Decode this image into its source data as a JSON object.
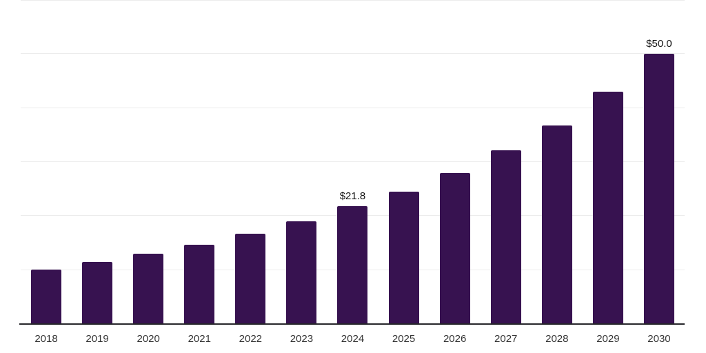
{
  "chart": {
    "background": "#ffffff",
    "bar_color": "#371250",
    "gridline_color": "#ececec",
    "axis_line_color": "#26262a",
    "data_label_color": "#111111",
    "tick_label_color": "#333333"
  },
  "chart_data": {
    "type": "bar",
    "title": "",
    "xlabel": "",
    "ylabel": "",
    "categories": [
      "2018",
      "2019",
      "2020",
      "2021",
      "2022",
      "2023",
      "2024",
      "2025",
      "2026",
      "2027",
      "2028",
      "2029",
      "2030"
    ],
    "values": [
      10.1,
      11.5,
      13.0,
      14.7,
      16.7,
      19.0,
      21.8,
      24.5,
      28.0,
      32.2,
      36.8,
      43.0,
      50.0
    ],
    "data_labels": [
      "",
      "",
      "",
      "",
      "",
      "",
      "$21.8",
      "",
      "",
      "",
      "",
      "",
      "$50.0"
    ],
    "ylim": [
      0,
      60
    ],
    "gridline_step": 10,
    "grid": "horizontal",
    "y_tick_labels_visible": false,
    "legend": "none"
  }
}
